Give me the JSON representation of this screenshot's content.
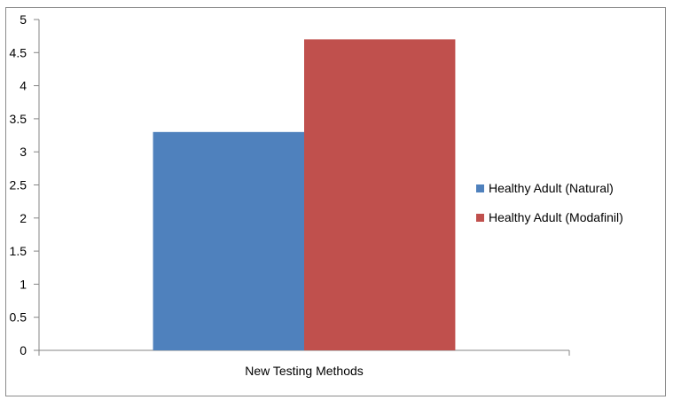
{
  "chart_data": {
    "type": "bar",
    "categories": [
      "New Testing Methods"
    ],
    "series": [
      {
        "name": "Healthy Adult (Natural)",
        "values": [
          3.3
        ],
        "color": "#4f81bd"
      },
      {
        "name": "Healthy Adult (Modafinil)",
        "values": [
          4.7
        ],
        "color": "#c0504d"
      }
    ],
    "ylim": [
      0,
      5
    ],
    "yticks": [
      "0",
      "0.5",
      "1",
      "1.5",
      "2",
      "2.5",
      "3",
      "3.5",
      "4",
      "4.5",
      "5"
    ],
    "grid": false,
    "legend": "right"
  }
}
